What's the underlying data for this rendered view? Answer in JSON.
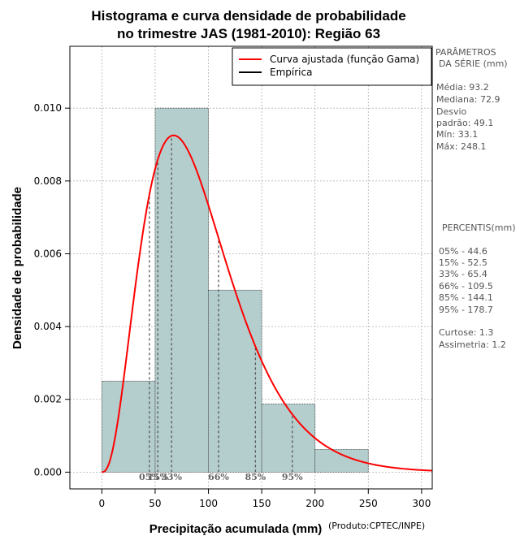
{
  "chart_data": {
    "type": "bar",
    "title_lines": [
      "Histograma e curva densidade de probabilidade",
      "no trimestre JAS (1981-2010): Região 63"
    ],
    "xlabel": "Precipitação acumulada (mm)",
    "ylabel": "Densidade de probabilidade",
    "credit": "(Produto:CPTEC/INPE)",
    "xlim": [
      -30,
      310
    ],
    "ylim": [
      -0.00046,
      0.0117
    ],
    "x_ticks": [
      0,
      50,
      100,
      150,
      200,
      250,
      300
    ],
    "x_tick_labels": [
      "0",
      "50",
      "100",
      "150",
      "200",
      "250",
      "300"
    ],
    "y_ticks": [
      0,
      0.002,
      0.004,
      0.006,
      0.008,
      0.01
    ],
    "y_tick_labels": [
      "0.000",
      "0.002",
      "0.004",
      "0.006",
      "0.008",
      "0.010"
    ],
    "histogram": [
      {
        "x0": 0,
        "x1": 50,
        "density": 0.0025
      },
      {
        "x0": 50,
        "x1": 100,
        "density": 0.01
      },
      {
        "x0": 100,
        "x1": 150,
        "density": 0.005
      },
      {
        "x0": 150,
        "x1": 200,
        "density": 0.001875
      },
      {
        "x0": 200,
        "x1": 250,
        "density": 0.000625
      }
    ],
    "gamma_fit": {
      "shape": 3.6,
      "scale": 25.9
    },
    "legend": [
      {
        "label": "Curva ajustada (função Gama)",
        "color": "#ff0000"
      },
      {
        "label": "Empírica",
        "color": "#000000"
      }
    ],
    "percentile_markers": [
      {
        "label": "05%",
        "x": 44.6
      },
      {
        "label": "15%",
        "x": 52.5
      },
      {
        "label": "33%",
        "x": 65.4
      },
      {
        "label": "66%",
        "x": 109.5
      },
      {
        "label": "85%",
        "x": 144.1
      },
      {
        "label": "95%",
        "x": 178.7
      }
    ],
    "colors": {
      "bar_fill": "#b4cdcd",
      "curve": "#ff0000",
      "grid": "#b0b0b0",
      "marker": "#555555"
    }
  },
  "side_panel": {
    "params_header": [
      "PARÂMETROS",
      "DA SÉRIE (mm)"
    ],
    "params": [
      "Média:  93.2",
      "Mediana:  72.9",
      "Desvio",
      "padrão:  49.1",
      "Mín:  33.1",
      "Máx:  248.1"
    ],
    "percentis_header": "PERCENTIS(mm)",
    "percentis": [
      "05% -  44.6",
      "15% -  52.5",
      "33% -  65.4",
      "66% -  109.5",
      "85% -  144.1",
      "95% -  178.7"
    ],
    "extra": [
      "Curtose:  1.3",
      "Assimetria:  1.2"
    ]
  }
}
